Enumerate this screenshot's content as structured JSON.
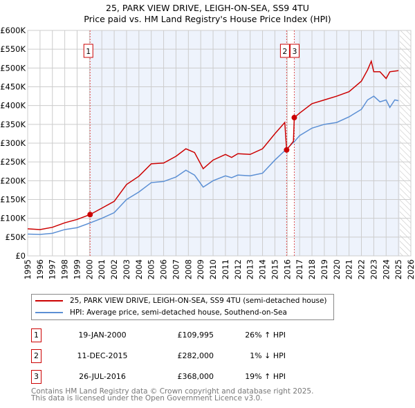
{
  "title": "25, PARK VIEW DRIVE, LEIGH-ON-SEA, SS9 4TU",
  "subtitle": "Price paid vs. HM Land Registry's House Price Index (HPI)",
  "colors": {
    "property": "#cc0000",
    "hpi": "#5b8fd4",
    "shade": "#eef3fc"
  },
  "chart_data": {
    "type": "line",
    "xlim": [
      1995,
      2026
    ],
    "ylim": [
      0,
      600000
    ],
    "yticks": [
      {
        "v": 0,
        "l": "£0"
      },
      {
        "v": 50000,
        "l": "£50K"
      },
      {
        "v": 100000,
        "l": "£100K"
      },
      {
        "v": 150000,
        "l": "£150K"
      },
      {
        "v": 200000,
        "l": "£200K"
      },
      {
        "v": 250000,
        "l": "£250K"
      },
      {
        "v": 300000,
        "l": "£300K"
      },
      {
        "v": 350000,
        "l": "£350K"
      },
      {
        "v": 400000,
        "l": "£400K"
      },
      {
        "v": 450000,
        "l": "£450K"
      },
      {
        "v": 500000,
        "l": "£500K"
      },
      {
        "v": 550000,
        "l": "£550K"
      },
      {
        "v": 600000,
        "l": "£600K"
      }
    ],
    "xticks": [
      "1995",
      "1996",
      "1997",
      "1998",
      "1999",
      "2000",
      "2001",
      "2002",
      "2003",
      "2004",
      "2005",
      "2006",
      "2007",
      "2008",
      "2009",
      "2010",
      "2011",
      "2012",
      "2013",
      "2014",
      "2015",
      "2016",
      "2017",
      "2018",
      "2019",
      "2020",
      "2021",
      "2022",
      "2023",
      "2024",
      "2025",
      "2026"
    ],
    "series": [
      {
        "name": "25, PARK VIEW DRIVE, LEIGH-ON-SEA, SS9 4TU (semi-detached house)",
        "x": [
          1995,
          1996,
          1997,
          1998,
          1999,
          2000.05,
          2001,
          2002,
          2003,
          2004,
          2005,
          2006,
          2007,
          2007.8,
          2008.5,
          2009.2,
          2010,
          2011,
          2011.5,
          2012,
          2013,
          2014,
          2015,
          2015.8,
          2015.95,
          2016.5,
          2016.57,
          2017,
          2018,
          2019,
          2020,
          2021,
          2022,
          2022.5,
          2022.8,
          2023,
          2023.5,
          2024,
          2024.3,
          2025
        ],
        "y": [
          72000,
          70000,
          76000,
          88000,
          97000,
          109995,
          127000,
          145000,
          190000,
          212000,
          245000,
          247000,
          265000,
          285000,
          275000,
          232000,
          255000,
          270000,
          262000,
          272000,
          270000,
          285000,
          325000,
          355000,
          282000,
          305000,
          368000,
          380000,
          405000,
          415000,
          425000,
          437000,
          465000,
          495000,
          518000,
          490000,
          490000,
          472000,
          490000,
          493000
        ]
      },
      {
        "name": "HPI: Average price, semi-detached house, Southend-on-Sea",
        "x": [
          1995,
          1996,
          1997,
          1998,
          1999,
          2000,
          2001,
          2002,
          2003,
          2004,
          2005,
          2006,
          2007,
          2007.8,
          2008.5,
          2009.2,
          2010,
          2011,
          2011.5,
          2012,
          2013,
          2014,
          2015,
          2015.9,
          2016.6,
          2017,
          2018,
          2019,
          2020,
          2021,
          2022,
          2022.5,
          2023,
          2023.5,
          2024,
          2024.3,
          2024.7,
          2025
        ],
        "y": [
          58000,
          57000,
          60000,
          70000,
          75000,
          87000,
          100000,
          115000,
          150000,
          170000,
          195000,
          198000,
          210000,
          228000,
          215000,
          183000,
          200000,
          213000,
          208000,
          215000,
          213000,
          220000,
          255000,
          283000,
          305000,
          320000,
          340000,
          350000,
          355000,
          370000,
          390000,
          415000,
          425000,
          410000,
          415000,
          395000,
          415000,
          413000
        ]
      }
    ],
    "sales": [
      {
        "n": "1",
        "x": 2000.05,
        "y": 109995
      },
      {
        "n": "2",
        "x": 2015.95,
        "y": 282000
      },
      {
        "n": "3",
        "x": 2016.57,
        "y": 368000
      }
    ]
  },
  "legend": {
    "property": "25, PARK VIEW DRIVE, LEIGH-ON-SEA, SS9 4TU (semi-detached house)",
    "hpi": "HPI: Average price, semi-detached house, Southend-on-Sea"
  },
  "transactions": [
    {
      "n": "1",
      "date": "19-JAN-2000",
      "price": "£109,995",
      "hpi": "26% ↑ HPI"
    },
    {
      "n": "2",
      "date": "11-DEC-2015",
      "price": "£282,000",
      "hpi": "1% ↓ HPI"
    },
    {
      "n": "3",
      "date": "26-JUL-2016",
      "price": "£368,000",
      "hpi": "19% ↑ HPI"
    }
  ],
  "footer": [
    "Contains HM Land Registry data © Crown copyright and database right 2025.",
    "This data is licensed under the Open Government Licence v3.0."
  ]
}
